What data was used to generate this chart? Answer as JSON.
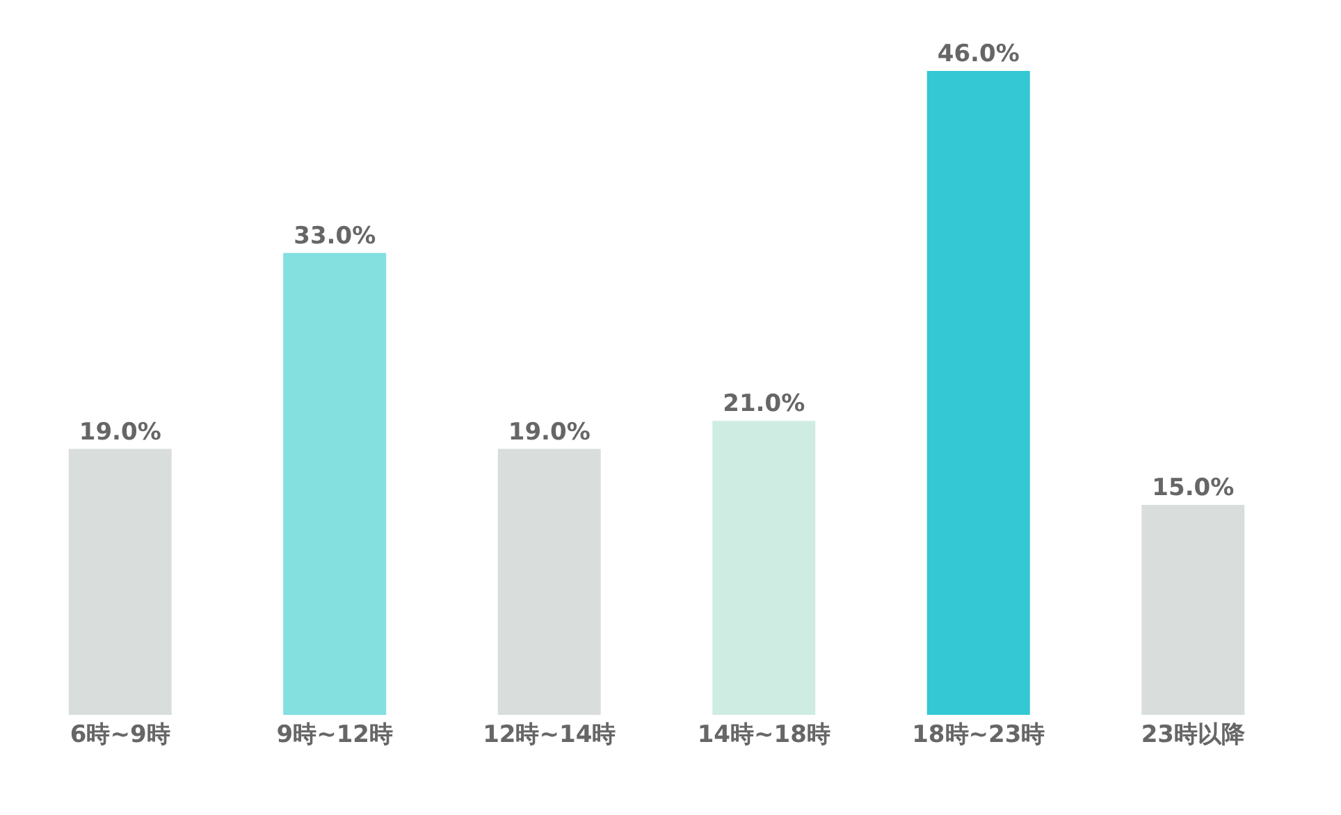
{
  "chart_data": {
    "type": "bar",
    "categories": [
      "6時~9時",
      "9時~12時",
      "12時~14時",
      "14時~18時",
      "18時~23時",
      "23時以降"
    ],
    "values": [
      19.0,
      33.0,
      19.0,
      21.0,
      46.0,
      15.0
    ],
    "colors": [
      "#d9dedd",
      "#84dfdf",
      "#d9dedd",
      "#cfece2",
      "#33c8d4",
      "#d9dedd"
    ],
    "value_labels": [
      "19.0%",
      "33.0%",
      "19.0%",
      "21.0%",
      "46.0%",
      "15.0%"
    ],
    "grid": false
  }
}
